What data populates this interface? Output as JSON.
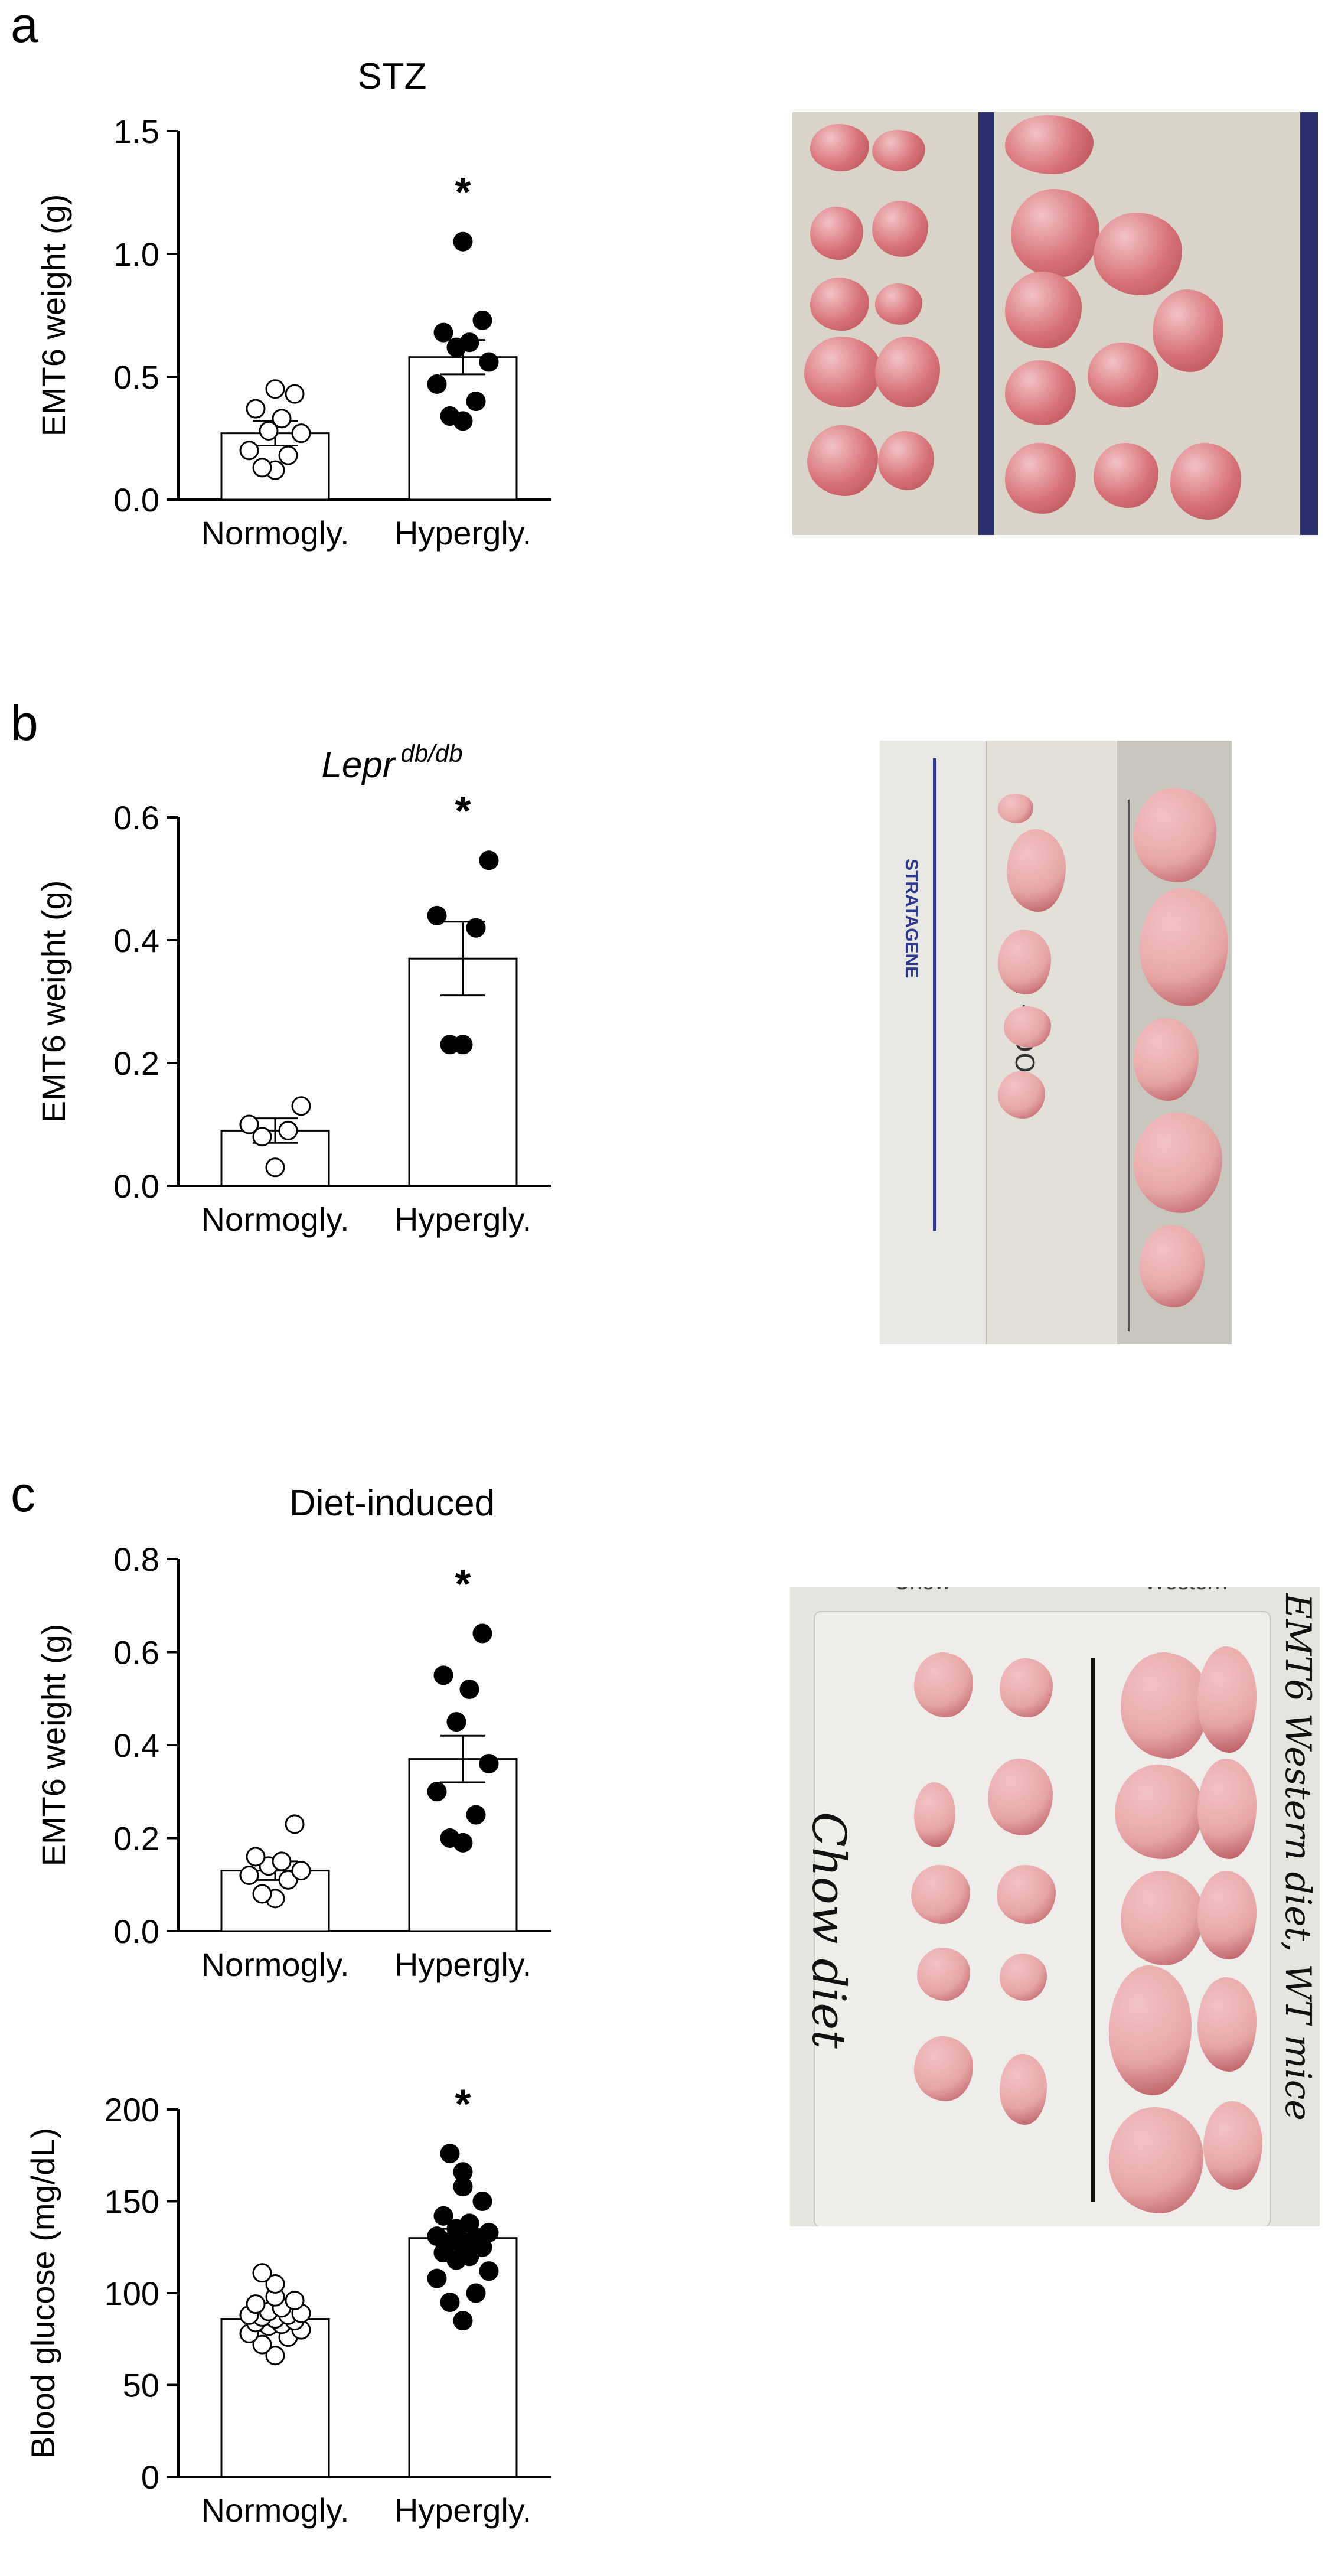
{
  "panels": [
    {
      "letter": "a"
    },
    {
      "letter": "b"
    },
    {
      "letter": "c"
    }
  ],
  "chart_data": [
    {
      "type": "bar",
      "panel": "a",
      "title": "STZ",
      "title_italic": false,
      "superscript": "",
      "ylabel": "EMT6 weight (g)",
      "ylim": [
        0,
        1.5
      ],
      "yticks": [
        0,
        0.5,
        1.0,
        1.5
      ],
      "ytick_labels": [
        "0.0",
        "0.5",
        "1.0",
        "1.5"
      ],
      "categories": [
        "Normogly.",
        "Hypergly."
      ],
      "series": [
        {
          "values": [
            0.27,
            0.58
          ],
          "sem": [
            0.05,
            0.07
          ]
        }
      ],
      "points": [
        [
          0.12,
          0.13,
          0.18,
          0.2,
          0.27,
          0.28,
          0.33,
          0.37,
          0.43,
          0.45
        ],
        [
          0.32,
          0.34,
          0.4,
          0.47,
          0.56,
          0.62,
          0.64,
          0.68,
          0.73,
          1.05
        ]
      ],
      "significance": [
        "",
        "*"
      ]
    },
    {
      "type": "bar",
      "panel": "b",
      "title": "Lepr",
      "title_italic": true,
      "superscript": "db/db",
      "ylabel": "EMT6 weight (g)",
      "ylim": [
        0,
        0.6
      ],
      "yticks": [
        0,
        0.2,
        0.4,
        0.6
      ],
      "ytick_labels": [
        "0.0",
        "0.2",
        "0.4",
        "0.6"
      ],
      "categories": [
        "Normogly.",
        "Hypergly."
      ],
      "series": [
        {
          "values": [
            0.09,
            0.37
          ],
          "sem": [
            0.02,
            0.06
          ]
        }
      ],
      "points": [
        [
          0.03,
          0.08,
          0.09,
          0.1,
          0.13
        ],
        [
          0.23,
          0.23,
          0.42,
          0.44,
          0.53
        ]
      ],
      "significance": [
        "",
        "*"
      ]
    },
    {
      "type": "bar",
      "panel": "c",
      "title": "Diet-induced",
      "title_italic": false,
      "superscript": "",
      "ylabel": "EMT6 weight (g)",
      "ylim": [
        0,
        0.8
      ],
      "yticks": [
        0,
        0.2,
        0.4,
        0.6,
        0.8
      ],
      "ytick_labels": [
        "0.0",
        "0.2",
        "0.4",
        "0.6",
        "0.8"
      ],
      "categories": [
        "Normogly.",
        "Hypergly."
      ],
      "series": [
        {
          "values": [
            0.13,
            0.37
          ],
          "sem": [
            0.02,
            0.05
          ]
        }
      ],
      "points": [
        [
          0.07,
          0.08,
          0.11,
          0.12,
          0.13,
          0.14,
          0.15,
          0.16,
          0.23
        ],
        [
          0.19,
          0.2,
          0.25,
          0.3,
          0.36,
          0.45,
          0.52,
          0.55,
          0.64
        ]
      ],
      "significance": [
        "",
        "*"
      ]
    },
    {
      "type": "bar",
      "panel": "c",
      "title": "",
      "title_italic": false,
      "superscript": "",
      "ylabel": "Blood glucose (mg/dL)",
      "ylim": [
        0,
        200
      ],
      "yticks": [
        0,
        50,
        100,
        150,
        200
      ],
      "ytick_labels": [
        "0",
        "50",
        "100",
        "150",
        "200"
      ],
      "categories": [
        "Normogly.",
        "Hypergly."
      ],
      "series": [
        {
          "values": [
            86,
            130
          ],
          "sem": [
            2.5,
            5
          ]
        }
      ],
      "points": [
        [
          66,
          72,
          76,
          78,
          80,
          82,
          83,
          84,
          85,
          86,
          86,
          87,
          88,
          88,
          89,
          90,
          92,
          94,
          96,
          98,
          105,
          111
        ],
        [
          85,
          95,
          100,
          108,
          112,
          118,
          120,
          122,
          125,
          126,
          128,
          128,
          130,
          131,
          133,
          135,
          138,
          142,
          150,
          158,
          166,
          176
        ]
      ],
      "significance": [
        "",
        "*"
      ]
    }
  ],
  "photos": [
    {
      "panel": "a",
      "background": "#d9d3c8",
      "ruler_color": "#27306b"
    },
    {
      "panel": "b",
      "background": "#c9c6bd",
      "ruler_color": "#2b3a8c",
      "ruler_brand": "STRATAGENE",
      "note": "LEPR + DOC"
    },
    {
      "panel": "c",
      "background": "#e6e4df",
      "col_labels": [
        "Chow",
        "Western"
      ],
      "left_text": "Chow diet",
      "right_text": "EMT6 Western diet, WT mice"
    }
  ],
  "colors": {
    "tumor": "#d8727a",
    "tumor_pale": "#e7a6a6",
    "bar_fill": "#ffffff",
    "axis": "#000000"
  }
}
